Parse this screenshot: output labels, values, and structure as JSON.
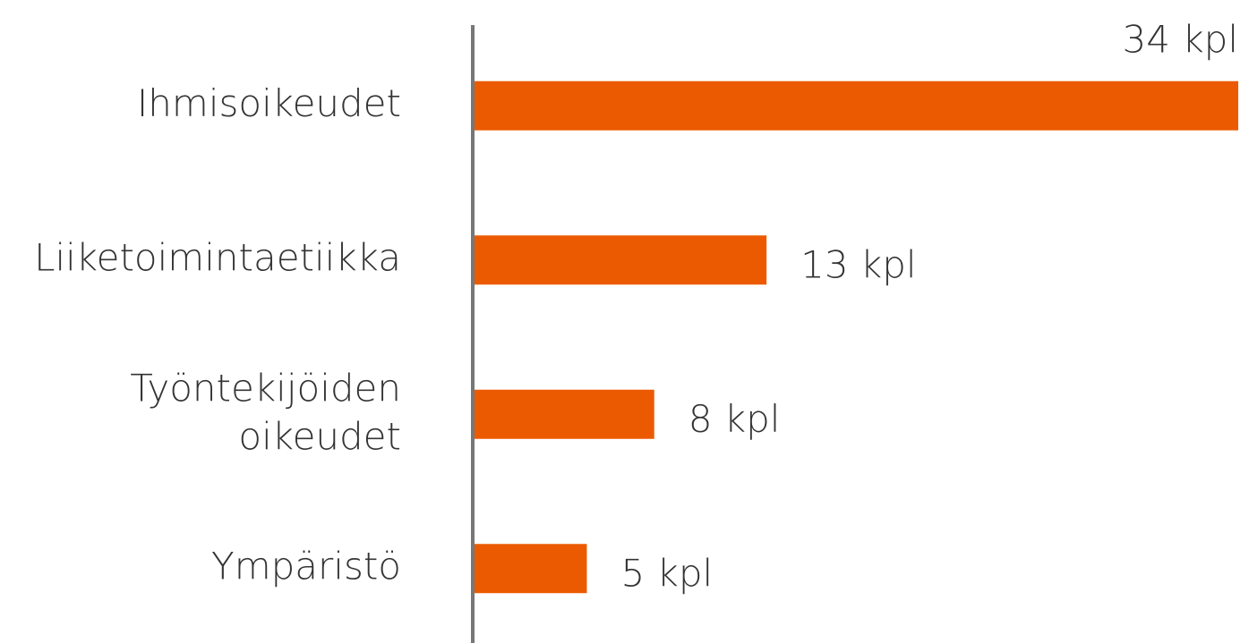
{
  "chart_data": {
    "type": "hbar",
    "categories": [
      "Ihmisoikeudet",
      "Liiketoimintaetiikka",
      "Työntekijöiden oikeudet",
      "Ympäristö"
    ],
    "values": [
      34,
      13,
      8,
      5
    ],
    "value_labels": [
      "34 kpl",
      "13 kpl",
      "8 kpl",
      "5 kpl"
    ],
    "color": "#eb5a00",
    "xlim": [
      0,
      34
    ]
  }
}
